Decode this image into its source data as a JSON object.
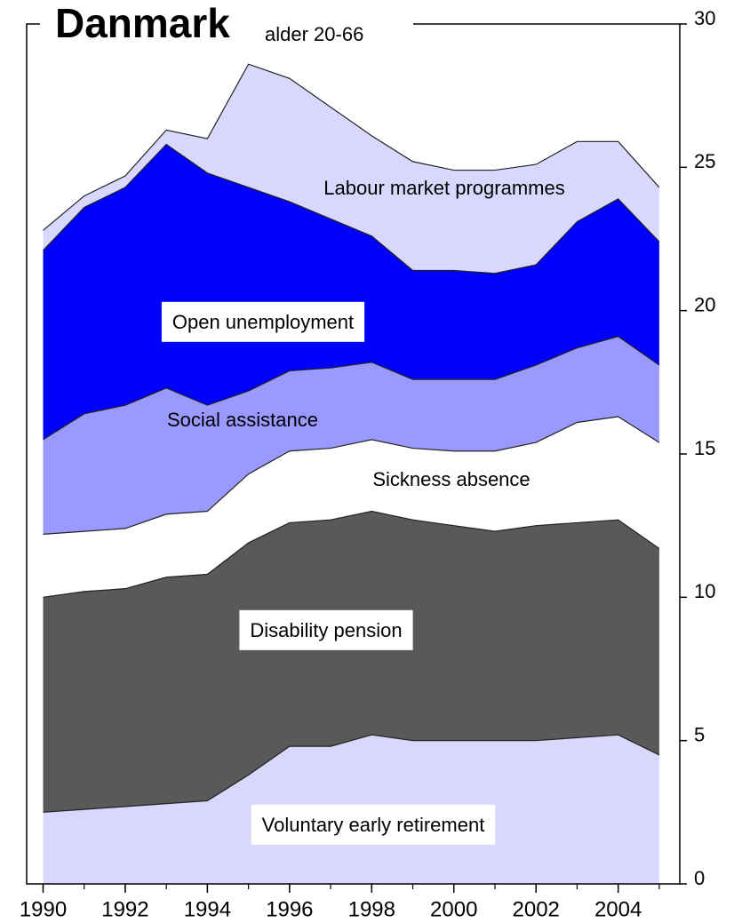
{
  "chart_data": {
    "type": "stacked_area",
    "title": "Danmark",
    "subtitle": "alder 20-66",
    "x": [
      1990,
      1991,
      1992,
      1993,
      1994,
      1995,
      1996,
      1997,
      1998,
      1999,
      2000,
      2001,
      2002,
      2003,
      2004,
      2005
    ],
    "series": [
      {
        "name": "Voluntary early retirement",
        "color": "#d8d8ff",
        "values": [
          2.5,
          2.6,
          2.7,
          2.8,
          2.9,
          3.8,
          4.8,
          4.8,
          5.2,
          5.0,
          5.0,
          5.0,
          5.0,
          5.1,
          5.2,
          4.5
        ]
      },
      {
        "name": "Disability pension",
        "color": "#595959",
        "values": [
          7.5,
          7.6,
          7.6,
          7.9,
          7.9,
          8.1,
          7.8,
          7.9,
          7.8,
          7.7,
          7.5,
          7.3,
          7.5,
          7.5,
          7.5,
          7.2
        ]
      },
      {
        "name": "Sickness absence",
        "color": "#ffffff",
        "values": [
          2.2,
          2.1,
          2.1,
          2.2,
          2.2,
          2.4,
          2.5,
          2.5,
          2.5,
          2.5,
          2.6,
          2.8,
          2.9,
          3.5,
          3.6,
          3.7
        ]
      },
      {
        "name": "Social assistance",
        "color": "#9999ff",
        "values": [
          3.3,
          4.1,
          4.3,
          4.4,
          3.7,
          2.9,
          2.8,
          2.8,
          2.7,
          2.4,
          2.5,
          2.5,
          2.7,
          2.6,
          2.8,
          2.7
        ]
      },
      {
        "name": "Open unemployment",
        "color": "#0000ff",
        "values": [
          6.6,
          7.2,
          7.6,
          8.5,
          8.1,
          7.1,
          5.9,
          5.2,
          4.4,
          3.8,
          3.8,
          3.7,
          3.5,
          4.4,
          4.8,
          4.3
        ]
      },
      {
        "name": "Labour market programmes",
        "color": "#d8d8ff",
        "values": [
          0.7,
          0.4,
          0.4,
          0.5,
          1.2,
          4.3,
          4.3,
          3.9,
          3.5,
          3.8,
          3.5,
          3.6,
          3.5,
          2.8,
          2.0,
          1.9
        ]
      }
    ],
    "xlim": [
      1989.6,
      2005.5
    ],
    "xticks": [
      1990,
      1992,
      1994,
      1996,
      1998,
      2000,
      2002,
      2004
    ],
    "ylim": [
      0,
      30
    ],
    "yticks": [
      0,
      5,
      10,
      15,
      20,
      25,
      30
    ]
  }
}
